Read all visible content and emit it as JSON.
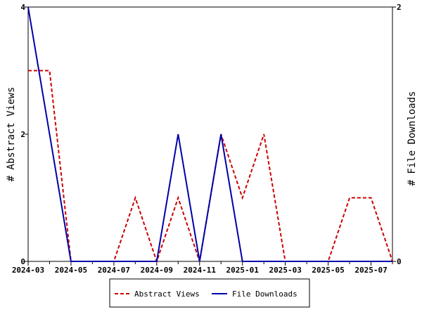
{
  "chart_data": {
    "type": "line",
    "x": [
      "2024-03",
      "2024-04",
      "2024-05",
      "2024-06",
      "2024-07",
      "2024-08",
      "2024-09",
      "2024-10",
      "2024-11",
      "2024-12",
      "2025-01",
      "2025-02",
      "2025-03",
      "2025-04",
      "2025-05",
      "2025-06",
      "2025-07",
      "2025-08"
    ],
    "x_tick_labels": [
      "2024-03",
      "2024-05",
      "2024-07",
      "2024-09",
      "2024-11",
      "2025-01",
      "2025-03",
      "2025-05",
      "2025-07"
    ],
    "series": [
      {
        "name": "Abstract Views",
        "axis": "left",
        "color": "#cc0000",
        "dash": true,
        "values": [
          3,
          3,
          0,
          0,
          0,
          1,
          0,
          1,
          0,
          2,
          1,
          2,
          0,
          0,
          0,
          1,
          1,
          0
        ]
      },
      {
        "name": "File Downloads",
        "axis": "right",
        "color": "#0000aa",
        "dash": false,
        "values": [
          2,
          1,
          0,
          0,
          0,
          0,
          0,
          1,
          0,
          1,
          0,
          0,
          0,
          0,
          0,
          0,
          0,
          0
        ]
      }
    ],
    "ylabel": "# Abstract Views",
    "y2label": "# File Downloads",
    "ylim": [
      0,
      4
    ],
    "y2lim": [
      0,
      2
    ],
    "y_ticks": [
      "0",
      "2",
      "4"
    ],
    "y2_ticks": [
      "0",
      "2"
    ],
    "grid": false,
    "legend_position": "bottom-center"
  }
}
